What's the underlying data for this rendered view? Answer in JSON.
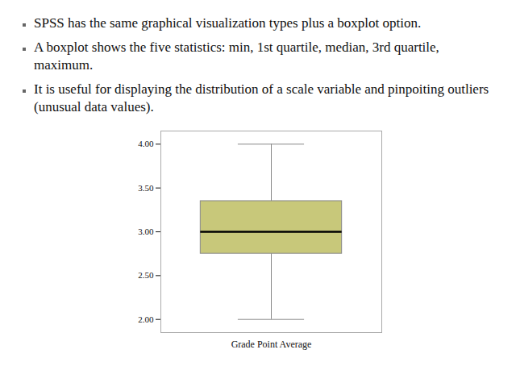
{
  "chart_data": {
    "type": "box",
    "annotations": [
      "SPSS has the same graphical visualization types plus a boxplot option.",
      "A boxplot shows the five statistics: min, 1st quartile, median, 3rd quartile, maximum.",
      "It is useful for displaying the distribution of a scale variable and pinpoiting outliers (unusual data values)."
    ],
    "xlabel": "Grade Point Average",
    "stats": {
      "whisker_low": 2.0,
      "q1": 2.75,
      "median": 3.0,
      "q3": 3.35,
      "whisker_high": 4.0
    },
    "color": "#c8c87a",
    "ylim": [
      1.85,
      4.15
    ],
    "yticks": [
      {
        "value": 2.0,
        "label": "2.00"
      },
      {
        "value": 2.5,
        "label": "2.50"
      },
      {
        "value": 3.0,
        "label": "3.00"
      },
      {
        "value": 3.5,
        "label": "3.50"
      },
      {
        "value": 4.0,
        "label": "4.00"
      }
    ],
    "tick_labels": "y"
  }
}
